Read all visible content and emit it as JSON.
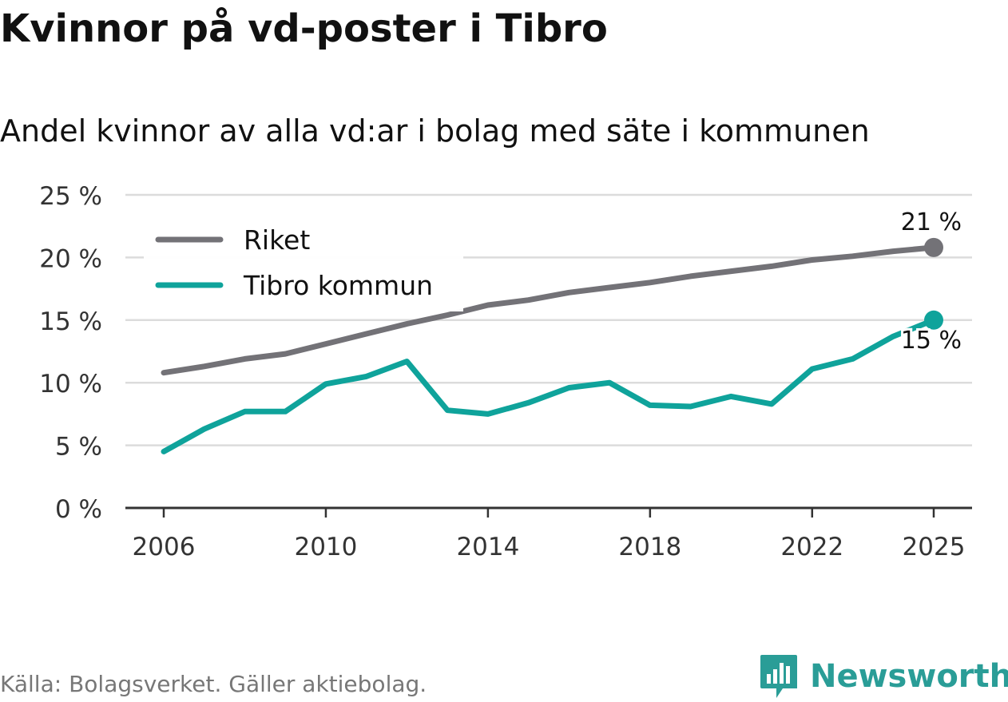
{
  "title": "Kvinnor på vd-poster i Tibro",
  "subtitle": "Andel kvinnor av alla vd:ar i bolag med säte i kommunen",
  "source": "Källa: Bolagsverket. Gäller aktiebolag.",
  "brand": {
    "name": "Newsworthy",
    "icon": "newsworthy-logo-icon"
  },
  "colors": {
    "riket": "#737277",
    "tibro": "#0fa39b",
    "grid": "#dcdcdc",
    "axis": "#333333"
  },
  "chart_data": {
    "type": "line",
    "x": [
      2006,
      2007,
      2008,
      2009,
      2010,
      2011,
      2012,
      2013,
      2014,
      2015,
      2016,
      2017,
      2018,
      2019,
      2020,
      2021,
      2022,
      2023,
      2024,
      2025
    ],
    "series": [
      {
        "name": "Riket",
        "color": "#737277",
        "values": [
          10.8,
          11.3,
          11.9,
          12.3,
          13.1,
          13.9,
          14.7,
          15.4,
          16.2,
          16.6,
          17.2,
          17.6,
          18.0,
          18.5,
          18.9,
          19.3,
          19.8,
          20.1,
          20.5,
          20.8
        ]
      },
      {
        "name": "Tibro kommun",
        "color": "#0fa39b",
        "values": [
          4.5,
          6.3,
          7.7,
          7.7,
          9.9,
          10.5,
          11.7,
          7.8,
          7.5,
          8.4,
          9.6,
          10.0,
          8.2,
          8.1,
          8.9,
          8.3,
          11.1,
          11.9,
          13.7,
          15.0
        ]
      }
    ],
    "end_labels": [
      "21 %",
      "15 %"
    ],
    "yticks": [
      "0 %",
      "5 %",
      "10 %",
      "15 %",
      "20 %",
      "25 %"
    ],
    "ytick_values": [
      0,
      5,
      10,
      15,
      20,
      25
    ],
    "xticks": [
      "2006",
      "2010",
      "2014",
      "2018",
      "2022",
      "2025"
    ],
    "xtick_values": [
      2006,
      2010,
      2014,
      2018,
      2022,
      2025
    ],
    "ylim": [
      0,
      25
    ],
    "xlim": [
      2006,
      2025
    ],
    "grid": true,
    "legend_position": "top-left"
  }
}
